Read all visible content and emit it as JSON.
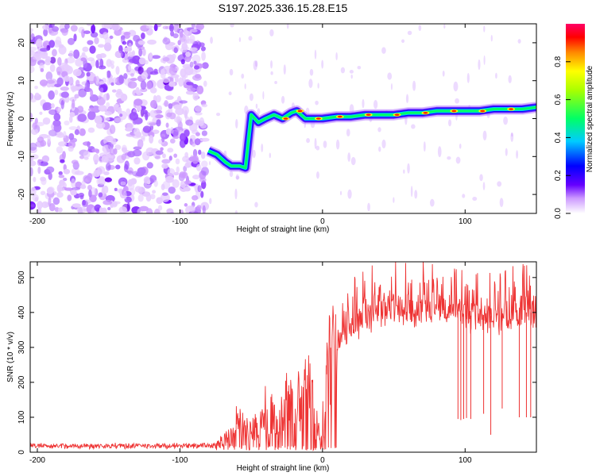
{
  "title": "S197.2025.336.15.28.E15",
  "chart_data": [
    {
      "type": "heatmap",
      "title": "S197.2025.336.15.28.E15",
      "xlabel": "Height of straight line (km)",
      "ylabel": "Frequency (Hz)",
      "xlim": [
        -205,
        150
      ],
      "ylim": [
        -25,
        25
      ],
      "xticks": [
        -200,
        -100,
        0,
        100
      ],
      "yticks": [
        -20,
        -10,
        0,
        10,
        20
      ],
      "colorbar": {
        "label": "Normalized spectral amplitude",
        "range": [
          0,
          1
        ],
        "ticks": [
          "0.0",
          "0.2",
          "0.4",
          "0.6",
          "0.8"
        ],
        "colors": [
          "#ffffff",
          "#9933ff",
          "#0000ff",
          "#00ffff",
          "#00ff00",
          "#ffff00",
          "#ff8800",
          "#ff0000",
          "#ff0088"
        ]
      },
      "ridge": [
        {
          "x": -80,
          "y": -8.5
        },
        {
          "x": -74,
          "y": -9.5
        },
        {
          "x": -68,
          "y": -11.5
        },
        {
          "x": -64,
          "y": -12.5
        },
        {
          "x": -58,
          "y": -12.5
        },
        {
          "x": -54,
          "y": -13
        },
        {
          "x": -50,
          "y": 1
        },
        {
          "x": -45,
          "y": -1
        },
        {
          "x": -40,
          "y": 0
        },
        {
          "x": -34,
          "y": 1
        },
        {
          "x": -28,
          "y": 0
        },
        {
          "x": -22,
          "y": 1.5
        },
        {
          "x": -18,
          "y": 2
        },
        {
          "x": -12,
          "y": 0
        },
        {
          "x": -5,
          "y": 0
        },
        {
          "x": 0,
          "y": 0
        },
        {
          "x": 10,
          "y": 0.5
        },
        {
          "x": 20,
          "y": 0.5
        },
        {
          "x": 30,
          "y": 1
        },
        {
          "x": 40,
          "y": 1
        },
        {
          "x": 50,
          "y": 1
        },
        {
          "x": 60,
          "y": 1.5
        },
        {
          "x": 70,
          "y": 1.5
        },
        {
          "x": 80,
          "y": 2
        },
        {
          "x": 90,
          "y": 2
        },
        {
          "x": 100,
          "y": 2
        },
        {
          "x": 110,
          "y": 2
        },
        {
          "x": 120,
          "y": 2.5
        },
        {
          "x": 130,
          "y": 2.5
        },
        {
          "x": 140,
          "y": 2.5
        },
        {
          "x": 150,
          "y": 3
        }
      ]
    },
    {
      "type": "line",
      "xlabel": "Height of straight line (km)",
      "ylabel": "SNR (10 * v/v)",
      "xlim": [
        -205,
        150
      ],
      "ylim": [
        0,
        545
      ],
      "xticks": [
        -200,
        -100,
        0,
        100
      ],
      "yticks": [
        0,
        100,
        200,
        300,
        400,
        500
      ],
      "color": "#ee3333",
      "x": [
        -205,
        -180,
        -150,
        -120,
        -90,
        -75,
        -65,
        -60,
        -55,
        -50,
        -45,
        -40,
        -35,
        -30,
        -25,
        -20,
        -15,
        -10,
        -5,
        0,
        5,
        10,
        15,
        20,
        25,
        30,
        35,
        40,
        50,
        60,
        70,
        80,
        90,
        95,
        100,
        105,
        110,
        115,
        120,
        125,
        130,
        135,
        140,
        145,
        150
      ],
      "y": [
        18,
        18,
        18,
        18,
        18,
        20,
        45,
        90,
        80,
        60,
        70,
        120,
        110,
        90,
        150,
        130,
        180,
        200,
        90,
        20,
        270,
        310,
        320,
        350,
        380,
        390,
        400,
        405,
        410,
        410,
        410,
        405,
        400,
        400,
        395,
        390,
        390,
        390,
        390,
        385,
        390,
        395,
        400,
        400,
        400
      ],
      "drops": [
        {
          "x": 95,
          "y": 95
        },
        {
          "x": 97,
          "y": 92
        },
        {
          "x": 99,
          "y": 95
        },
        {
          "x": 101,
          "y": 98
        },
        {
          "x": 104,
          "y": 95
        },
        {
          "x": 113,
          "y": 110
        },
        {
          "x": 118,
          "y": 50
        },
        {
          "x": 126,
          "y": 125
        },
        {
          "x": 138,
          "y": 100
        },
        {
          "x": 143,
          "y": 100
        },
        {
          "x": 146,
          "y": 100
        }
      ]
    }
  ]
}
